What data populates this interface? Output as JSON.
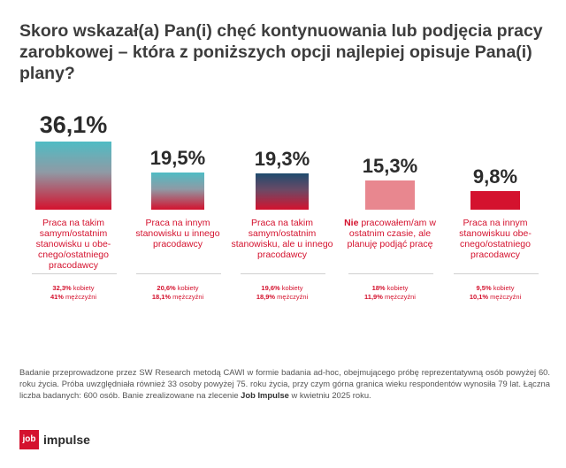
{
  "title": "Skoro wskazał(a) Pan(i) chęć kontynuowania lub podjęcia pracy zarobkowej – która z poniższych opcji najlepiej opisuje Pana(i) plany?",
  "colors": {
    "accent": "#d4122e",
    "teal": "#4fbcc4",
    "pink": "#e8878f"
  },
  "chart_data": {
    "type": "bar",
    "title": "Skoro wskazał(a) Pan(i) chęć kontynuowania lub podjęcia pracy zarobkowej – która z poniższych opcji najlepiej opisuje Pana(i) plany?",
    "ylim": [
      0,
      36.1
    ],
    "categories": [
      {
        "value_label": "36,1%",
        "value": 36.1,
        "style": "teal-red",
        "label_html": "Praca na takim samym/ostatnim stanowisku u obe-cnego/ostatniego pracodawcy",
        "women": "32,3%",
        "women_text": "kobiety",
        "men": "41%",
        "men_text": "mężczyźni"
      },
      {
        "value_label": "19,5%",
        "value": 19.5,
        "style": "teal-red",
        "label_html": "Praca na innym stanowisku u innego pracodawcy",
        "women": "20,6%",
        "women_text": "kobiety",
        "men": "18,1%",
        "men_text": "mężczyźni"
      },
      {
        "value_label": "19,3%",
        "value": 19.3,
        "style": "navy-red",
        "label_html": "Praca na takim samym/ostatnim stanowisku, ale u innego pracodawcy",
        "women": "19,6%",
        "women_text": "kobiety",
        "men": "18,9%",
        "men_text": "mężczyźni"
      },
      {
        "value_label": "15,3%",
        "value": 15.3,
        "style": "pink",
        "label_bold": "Nie",
        "label_html": "pracowałem/am w ostatnim czasie, ale planuję podjąć pracę",
        "women": "18%",
        "women_text": "kobiety",
        "men": "11,9%",
        "men_text": "mężczyźni"
      },
      {
        "value_label": "9,8%",
        "value": 9.8,
        "style": "red",
        "label_html": "Praca na innym stanowiskuu obe-cnego/ostatniego pracodawcy",
        "women": "9,5%",
        "women_text": "kobiety",
        "men": "10,1%",
        "men_text": "mężczyźni"
      }
    ]
  },
  "footnote": {
    "text": "Badanie przeprowadzone przez SW Research metodą CAWI w formie badania ad-hoc, obejmującego próbę reprezentatywną osób powyżej 60. roku życia. Próba uwzględniała również 33 osoby powyżej 75. roku życia, przy czym górna granica wieku respondentów wynosiła 79 lat. Łączna liczba badanych: 600 osób. Banie zrealizowane na zlecenie",
    "brand": "Job Impulse",
    "tail": "w kwietniu 2025 roku."
  },
  "logo": {
    "box_text": "job",
    "text": "impulse"
  }
}
